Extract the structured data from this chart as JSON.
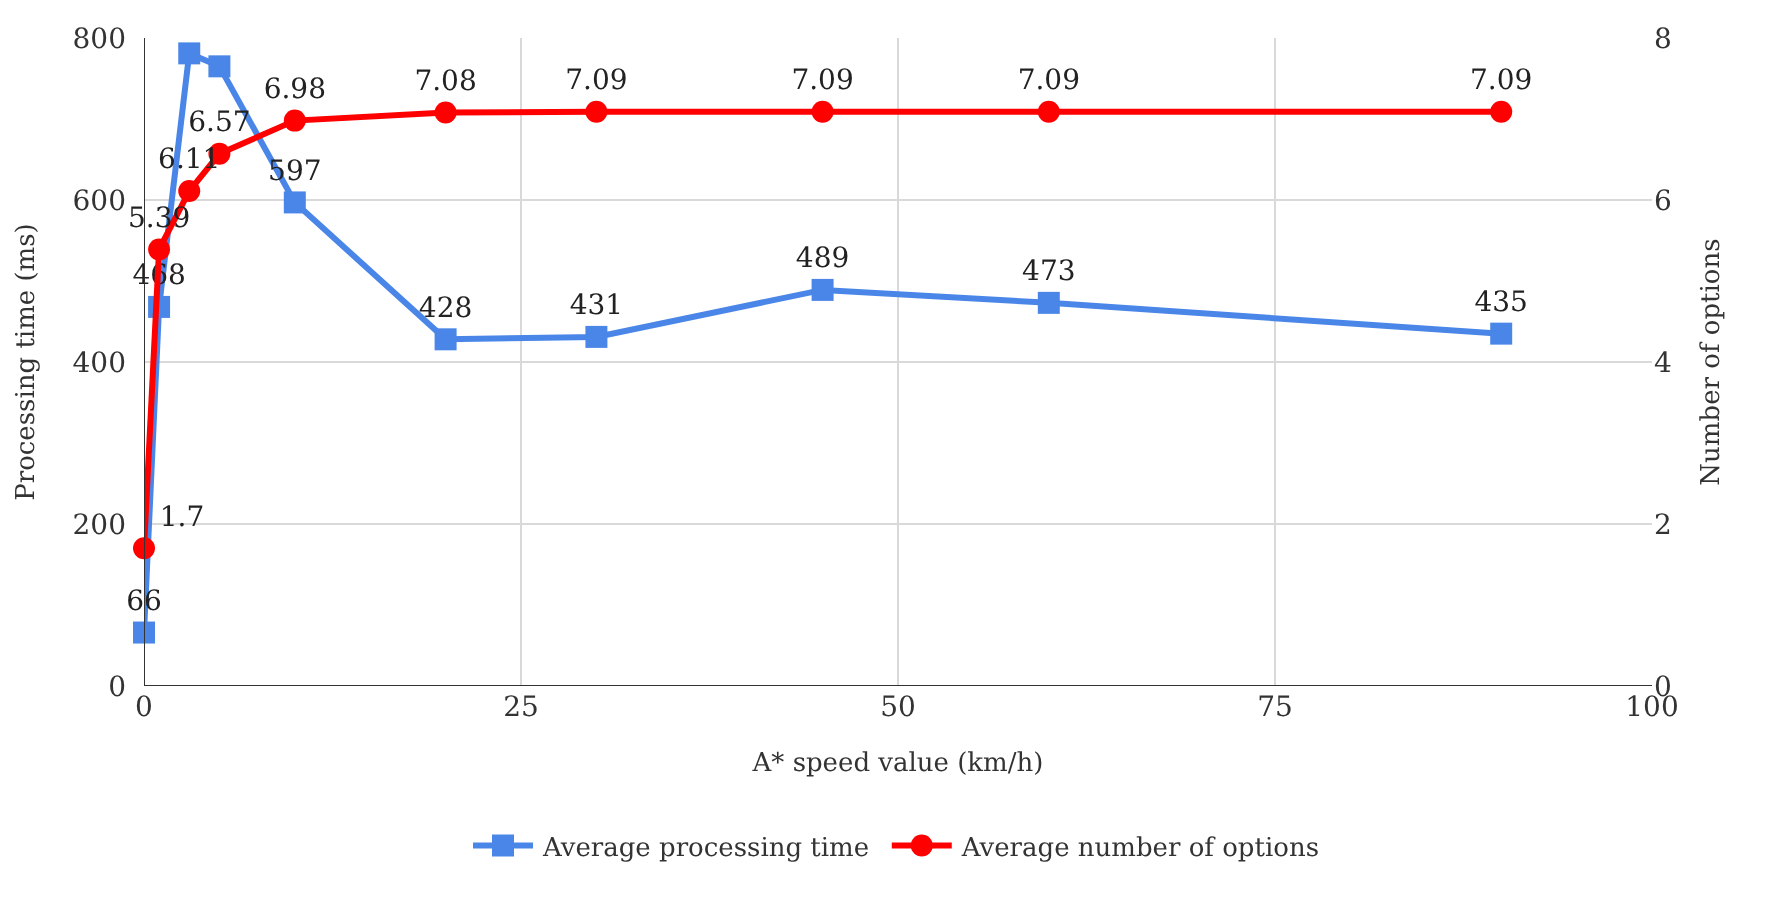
{
  "chart_data": {
    "type": "line",
    "xlabel": "A* speed value (km/h)",
    "ylabel": "Processing time (ms)",
    "y2label": "Number of options",
    "x": [
      0,
      1,
      3,
      5,
      10,
      20,
      30,
      45,
      60,
      90
    ],
    "series": [
      {
        "name": "Average processing time",
        "color": "#4a86e8",
        "marker": "square",
        "values": [
          66,
          468,
          781,
          765,
          597,
          428,
          431,
          489,
          473,
          435
        ],
        "value_labels": [
          "66",
          "468",
          null,
          null,
          "597",
          "428",
          "431",
          "489",
          "473",
          "435"
        ]
      },
      {
        "name": "Average number of options",
        "color": "#ff0000",
        "marker": "circle",
        "axis": "y2",
        "values": [
          1.7,
          5.39,
          6.11,
          6.57,
          6.98,
          7.08,
          7.09,
          7.09,
          7.09,
          7.09
        ],
        "value_labels": [
          "1.7",
          "5.39",
          "6.11",
          "6.57",
          "6.98",
          "7.08",
          "7.09",
          "7.09",
          "7.09",
          "7.09"
        ]
      }
    ],
    "xlim": [
      0,
      100
    ],
    "xticks": [
      0,
      25,
      50,
      75,
      100
    ],
    "ylim": [
      0,
      800
    ],
    "yticks": [
      0,
      200,
      400,
      600,
      800
    ],
    "y2lim": [
      0,
      8
    ],
    "y2ticks": [
      0,
      2,
      4,
      6,
      8
    ],
    "grid": true,
    "legend": "bottom"
  }
}
